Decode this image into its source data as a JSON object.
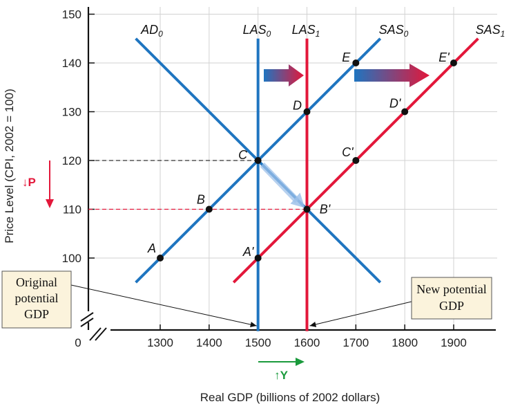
{
  "chart_data": {
    "type": "line",
    "xlabel": "Real GDP (billions of 2002 dollars)",
    "ylabel": "Price Level (CPI, 2002 = 100)",
    "x_ticks": [
      {
        "value": 0,
        "label": "0"
      },
      {
        "value": 1300,
        "label": "1300"
      },
      {
        "value": 1400,
        "label": "1400"
      },
      {
        "value": 1500,
        "label": "1500"
      },
      {
        "value": 1600,
        "label": "1600",
        "highlight": true
      },
      {
        "value": 1700,
        "label": "1700"
      },
      {
        "value": 1800,
        "label": "1800"
      },
      {
        "value": 1900,
        "label": "1900"
      }
    ],
    "y_ticks": [
      {
        "value": 100,
        "label": "100"
      },
      {
        "value": 110,
        "label": "110",
        "highlight": true
      },
      {
        "value": 120,
        "label": "120"
      },
      {
        "value": 130,
        "label": "130"
      },
      {
        "value": 140,
        "label": "140"
      },
      {
        "value": 150,
        "label": "150"
      }
    ],
    "x_break": true,
    "y_break": true,
    "colors": {
      "blue": "#1f75c0",
      "red": "#e3173a",
      "green": "#1a9a3c",
      "dash_black": "#333333"
    },
    "series": [
      {
        "name": "AD",
        "sub": "0",
        "color": "blue",
        "points": [
          [
            1250,
            145
          ],
          [
            1750,
            95
          ]
        ]
      },
      {
        "name": "LAS",
        "sub": "0",
        "color": "blue",
        "points": [
          [
            1500,
            145
          ],
          [
            1500,
            85
          ]
        ]
      },
      {
        "name": "LAS",
        "sub": "1",
        "color": "red",
        "points": [
          [
            1600,
            145
          ],
          [
            1600,
            85
          ]
        ]
      },
      {
        "name": "SAS",
        "sub": "0",
        "color": "blue",
        "points": [
          [
            1250,
            95
          ],
          [
            1750,
            145
          ]
        ]
      },
      {
        "name": "SAS",
        "sub": "1",
        "color": "red",
        "points": [
          [
            1450,
            95
          ],
          [
            1950,
            145
          ]
        ]
      }
    ],
    "labeled_points": [
      {
        "label": "A",
        "x": 1300,
        "y": 100
      },
      {
        "label": "B",
        "x": 1400,
        "y": 110
      },
      {
        "label": "C",
        "x": 1500,
        "y": 120
      },
      {
        "label": "D",
        "x": 1600,
        "y": 130
      },
      {
        "label": "E",
        "x": 1700,
        "y": 140
      },
      {
        "label": "A'",
        "x": 1500,
        "y": 100
      },
      {
        "label": "B'",
        "x": 1600,
        "y": 110
      },
      {
        "label": "C'",
        "x": 1700,
        "y": 120
      },
      {
        "label": "D'",
        "x": 1800,
        "y": 130
      },
      {
        "label": "E'",
        "x": 1900,
        "y": 140
      }
    ],
    "reference_lines": [
      {
        "type": "dashed",
        "y": 120,
        "to_x": 1500,
        "color": "dash_black"
      },
      {
        "type": "dashed",
        "y": 110,
        "to_x": 1600,
        "color": "red"
      }
    ],
    "shift_arrows": [
      {
        "from": "LAS0",
        "to": "LAS1"
      },
      {
        "from": "SAS0",
        "to": "SAS1"
      },
      {
        "from": "C",
        "to": "B'"
      }
    ],
    "annotations": [
      {
        "text": "↓P",
        "meaning": "price level falls",
        "color": "red"
      },
      {
        "text": "↑Y",
        "meaning": "real GDP rises",
        "color": "green"
      }
    ],
    "callouts": [
      {
        "lines": [
          "Original",
          "potential",
          "GDP"
        ],
        "points_to_x": 1500
      },
      {
        "lines": [
          "New potential",
          "GDP"
        ],
        "points_to_x": 1600
      }
    ]
  }
}
